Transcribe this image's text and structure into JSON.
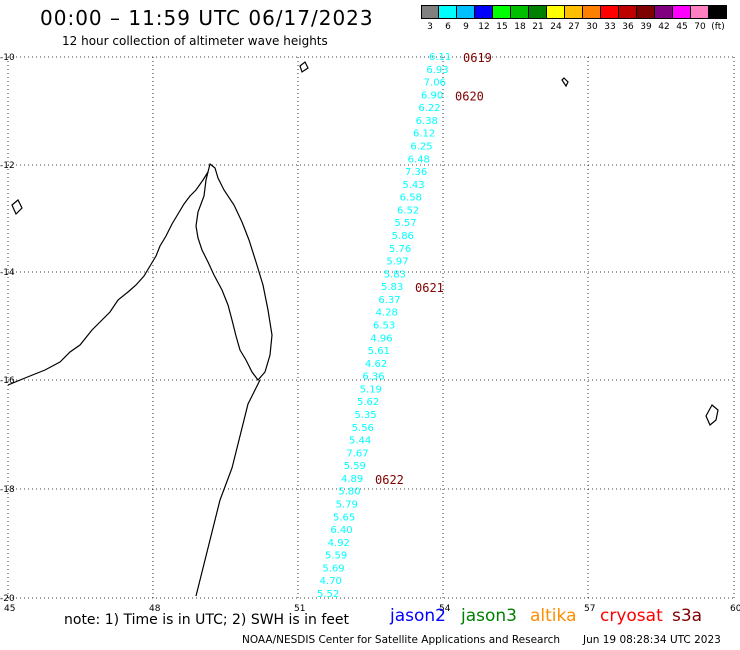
{
  "header": {
    "title": "00:00 – 11:59 UTC 06/17/2023",
    "subtitle": "12 hour collection of altimeter wave heights"
  },
  "legend": {
    "colors": [
      "#808080",
      "#00ffff",
      "#00bfff",
      "#0000ff",
      "#00ff00",
      "#00bf00",
      "#008000",
      "#ffff00",
      "#ffbf00",
      "#ff8000",
      "#ff0000",
      "#bf0000",
      "#800000",
      "#800080",
      "#ff00ff",
      "#ff80c0",
      "#000000"
    ],
    "labels": [
      "3",
      "6",
      "9",
      "12",
      "15",
      "18",
      "21",
      "24",
      "27",
      "30",
      "33",
      "36",
      "39",
      "42",
      "45",
      "70",
      "(ft)"
    ]
  },
  "axes": {
    "lon_ticks": [
      "45",
      "48",
      "51",
      "54",
      "57",
      "60"
    ],
    "lat_ticks": [
      "-10",
      "-12",
      "-14",
      "-16",
      "-18",
      "-20"
    ]
  },
  "track": {
    "color": "#00ffff",
    "values": [
      "6.11",
      "6.93",
      "7.06",
      "6.90",
      "6.22",
      "6.38",
      "6.12",
      "6.25",
      "6.48",
      "7.36",
      "5.43",
      "6.58",
      "6.52",
      "5.57",
      "5.86",
      "5.76",
      "5.97",
      "5.83",
      "5.83",
      "6.37",
      "4.28",
      "6.53",
      "4.96",
      "5.61",
      "4.62",
      "6.36",
      "5.19",
      "5.62",
      "5.35",
      "5.56",
      "5.44",
      "7.67",
      "5.59",
      "4.89",
      "5.80",
      "5.79",
      "5.65",
      "6.40",
      "4.92",
      "5.59",
      "5.69",
      "4.70",
      "5.52"
    ]
  },
  "time_labels": [
    {
      "text": "0619",
      "index": 0
    },
    {
      "text": "0620",
      "index": 3
    },
    {
      "text": "0621",
      "index": 18
    },
    {
      "text": "0622",
      "index": 33
    }
  ],
  "time_label_color": "#800000",
  "footer": {
    "note": "note: 1) Time is in UTC; 2) SWH is in feet",
    "satellites": [
      {
        "name": "jason2",
        "color": "#0000ff"
      },
      {
        "name": "jason3",
        "color": "#008000"
      },
      {
        "name": "altika",
        "color": "#ff8c00"
      },
      {
        "name": "cryosat",
        "color": "#ff0000"
      },
      {
        "name": "s3a",
        "color": "#800000"
      }
    ],
    "credit": "NOAA/NESDIS Center for Satellite Applications and Research",
    "timestamp": "Jun 19 08:28:34 UTC 2023"
  }
}
